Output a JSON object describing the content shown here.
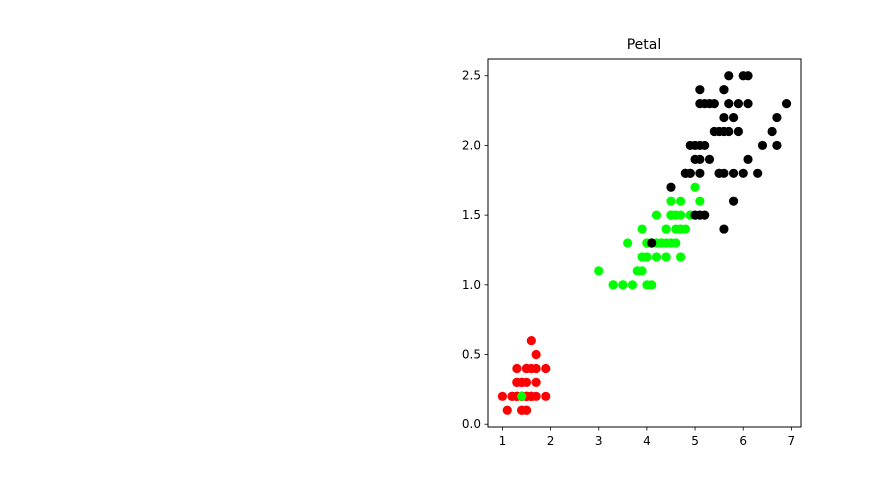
{
  "chart_data": {
    "type": "scatter",
    "title": "Petal",
    "xlabel": "",
    "ylabel": "",
    "xlim": [
      0.7,
      7.2
    ],
    "ylim": [
      -0.02,
      2.62
    ],
    "x_ticks": [
      "1",
      "2",
      "3",
      "4",
      "5",
      "6",
      "7"
    ],
    "y_ticks": [
      "0.0",
      "0.5",
      "1.0",
      "1.5",
      "2.0",
      "2.5"
    ],
    "grid": false,
    "legend": "none",
    "series": [
      {
        "color": "#ff0000",
        "points": [
          [
            1.4,
            0.2
          ],
          [
            1.4,
            0.2
          ],
          [
            1.3,
            0.2
          ],
          [
            1.5,
            0.2
          ],
          [
            1.4,
            0.2
          ],
          [
            1.7,
            0.4
          ],
          [
            1.4,
            0.3
          ],
          [
            1.5,
            0.2
          ],
          [
            1.4,
            0.2
          ],
          [
            1.5,
            0.1
          ],
          [
            1.5,
            0.2
          ],
          [
            1.6,
            0.2
          ],
          [
            1.4,
            0.1
          ],
          [
            1.1,
            0.1
          ],
          [
            1.2,
            0.2
          ],
          [
            1.5,
            0.4
          ],
          [
            1.3,
            0.4
          ],
          [
            1.4,
            0.3
          ],
          [
            1.7,
            0.3
          ],
          [
            1.5,
            0.3
          ],
          [
            1.7,
            0.2
          ],
          [
            1.5,
            0.4
          ],
          [
            1.0,
            0.2
          ],
          [
            1.7,
            0.5
          ],
          [
            1.9,
            0.2
          ],
          [
            1.6,
            0.2
          ],
          [
            1.6,
            0.4
          ],
          [
            1.5,
            0.2
          ],
          [
            1.4,
            0.2
          ],
          [
            1.6,
            0.2
          ],
          [
            1.6,
            0.2
          ],
          [
            1.5,
            0.4
          ],
          [
            1.5,
            0.1
          ],
          [
            1.4,
            0.2
          ],
          [
            1.5,
            0.2
          ],
          [
            1.2,
            0.2
          ],
          [
            1.3,
            0.2
          ],
          [
            1.4,
            0.1
          ],
          [
            1.3,
            0.2
          ],
          [
            1.5,
            0.2
          ],
          [
            1.3,
            0.3
          ],
          [
            1.3,
            0.3
          ],
          [
            1.3,
            0.2
          ],
          [
            1.6,
            0.6
          ],
          [
            1.9,
            0.4
          ],
          [
            1.4,
            0.3
          ],
          [
            1.6,
            0.2
          ],
          [
            1.4,
            0.2
          ],
          [
            1.5,
            0.2
          ],
          [
            1.4,
            0.2
          ]
        ]
      },
      {
        "color": "#00ff00",
        "points": [
          [
            4.7,
            1.4
          ],
          [
            4.5,
            1.5
          ],
          [
            4.9,
            1.5
          ],
          [
            4.0,
            1.3
          ],
          [
            4.6,
            1.5
          ],
          [
            4.5,
            1.3
          ],
          [
            4.7,
            1.6
          ],
          [
            3.3,
            1.0
          ],
          [
            4.6,
            1.3
          ],
          [
            3.9,
            1.4
          ],
          [
            3.5,
            1.0
          ],
          [
            4.2,
            1.5
          ],
          [
            4.0,
            1.0
          ],
          [
            4.7,
            1.4
          ],
          [
            3.6,
            1.3
          ],
          [
            4.4,
            1.4
          ],
          [
            4.5,
            1.5
          ],
          [
            4.1,
            1.0
          ],
          [
            4.5,
            1.5
          ],
          [
            3.9,
            1.1
          ],
          [
            4.8,
            1.8
          ],
          [
            4.0,
            1.3
          ],
          [
            4.9,
            1.5
          ],
          [
            4.7,
            1.2
          ],
          [
            4.3,
            1.3
          ],
          [
            4.4,
            1.4
          ],
          [
            4.8,
            1.4
          ],
          [
            5.0,
            1.7
          ],
          [
            4.5,
            1.5
          ],
          [
            3.5,
            1.0
          ],
          [
            3.8,
            1.1
          ],
          [
            3.7,
            1.0
          ],
          [
            3.9,
            1.2
          ],
          [
            5.1,
            1.6
          ],
          [
            4.5,
            1.5
          ],
          [
            4.5,
            1.6
          ],
          [
            4.7,
            1.5
          ],
          [
            4.4,
            1.3
          ],
          [
            4.1,
            1.3
          ],
          [
            4.0,
            1.3
          ],
          [
            4.4,
            1.2
          ],
          [
            4.6,
            1.4
          ],
          [
            4.0,
            1.2
          ],
          [
            3.3,
            1.0
          ],
          [
            4.2,
            1.3
          ],
          [
            4.2,
            1.2
          ],
          [
            4.2,
            1.3
          ],
          [
            4.3,
            1.3
          ],
          [
            3.0,
            1.1
          ],
          [
            4.1,
            1.3
          ],
          [
            1.4,
            0.2
          ]
        ]
      },
      {
        "color": "#000000",
        "points": [
          [
            6.0,
            2.5
          ],
          [
            5.1,
            1.9
          ],
          [
            5.9,
            2.1
          ],
          [
            5.6,
            1.8
          ],
          [
            5.8,
            2.2
          ],
          [
            6.6,
            2.1
          ],
          [
            4.5,
            1.7
          ],
          [
            6.3,
            1.8
          ],
          [
            5.8,
            1.8
          ],
          [
            6.1,
            2.5
          ],
          [
            5.1,
            2.0
          ],
          [
            5.3,
            1.9
          ],
          [
            5.5,
            2.1
          ],
          [
            5.0,
            2.0
          ],
          [
            5.1,
            2.4
          ],
          [
            5.3,
            2.3
          ],
          [
            5.5,
            1.8
          ],
          [
            6.7,
            2.2
          ],
          [
            6.9,
            2.3
          ],
          [
            5.0,
            1.5
          ],
          [
            5.7,
            2.3
          ],
          [
            4.9,
            2.0
          ],
          [
            6.7,
            2.0
          ],
          [
            4.9,
            1.8
          ],
          [
            5.7,
            2.1
          ],
          [
            6.0,
            1.8
          ],
          [
            4.8,
            1.8
          ],
          [
            4.9,
            1.8
          ],
          [
            5.6,
            2.1
          ],
          [
            5.8,
            1.6
          ],
          [
            6.1,
            1.9
          ],
          [
            6.4,
            2.0
          ],
          [
            5.6,
            2.2
          ],
          [
            5.1,
            1.5
          ],
          [
            5.6,
            1.4
          ],
          [
            6.1,
            2.3
          ],
          [
            5.6,
            2.4
          ],
          [
            5.5,
            1.8
          ],
          [
            4.8,
            1.8
          ],
          [
            5.4,
            2.1
          ],
          [
            5.6,
            2.4
          ],
          [
            5.1,
            2.3
          ],
          [
            5.9,
            2.3
          ],
          [
            5.7,
            2.5
          ],
          [
            5.2,
            2.3
          ],
          [
            5.0,
            1.9
          ],
          [
            5.2,
            2.0
          ],
          [
            5.4,
            2.3
          ],
          [
            5.1,
            1.8
          ],
          [
            4.1,
            1.3
          ],
          [
            5.2,
            1.5
          ]
        ]
      }
    ]
  }
}
